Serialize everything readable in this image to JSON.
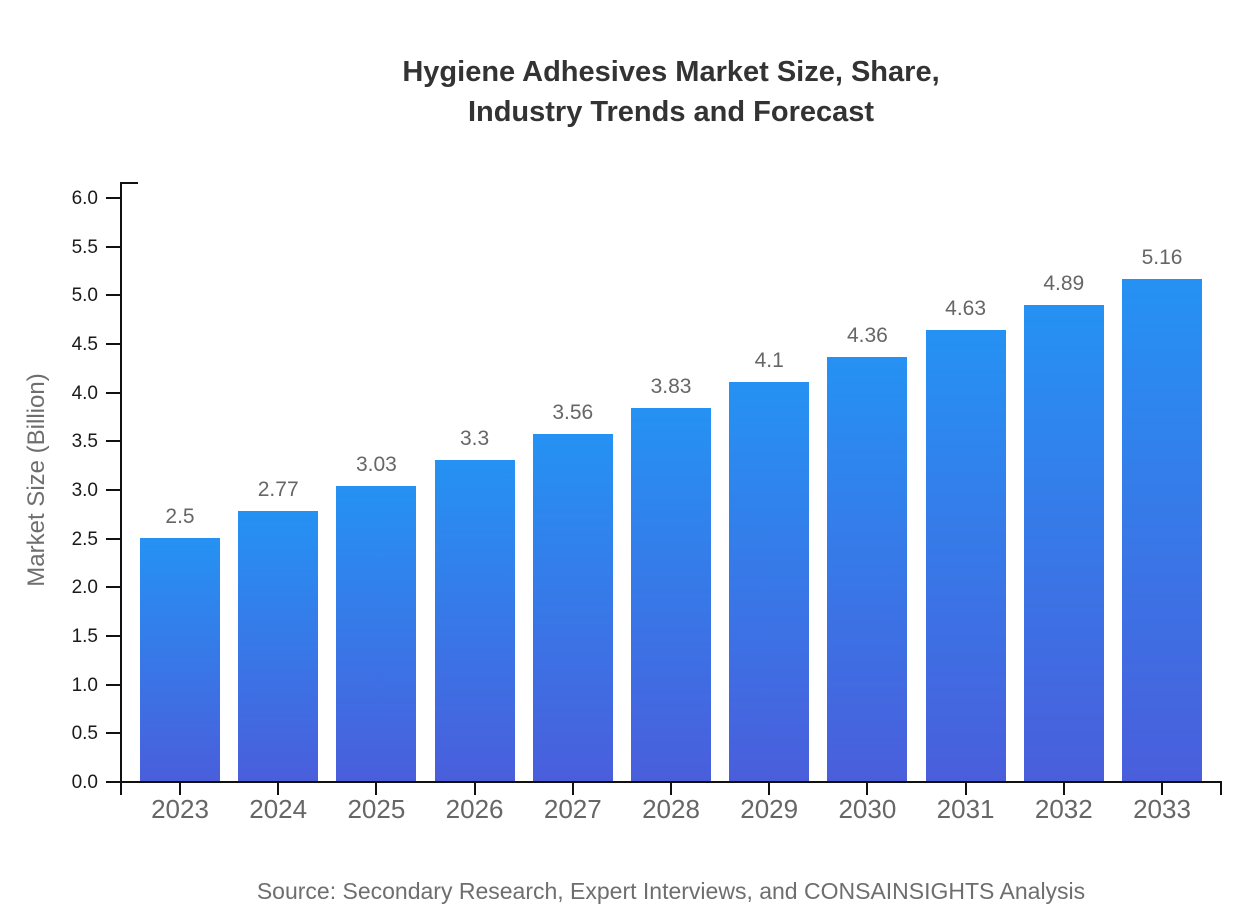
{
  "title": {
    "line1": "Hygiene Adhesives Market Size, Share,",
    "line2": "Industry Trends and Forecast"
  },
  "source": "Source: Secondary Research, Expert Interviews, and CONSAINSIGHTS Analysis",
  "colors": {
    "bar_gradient_top": "#2592f3",
    "bar_gradient_bottom": "#4a5edc",
    "axis": "#111111",
    "title_text": "#333333",
    "axis_label_text": "#6e6e6e",
    "x_tick_text": "#666666",
    "y_tick_text": "#1a1a1a",
    "value_label_text": "#666666",
    "background": "#ffffff"
  },
  "chart_data": {
    "type": "bar",
    "title": "Hygiene Adhesives Market Size, Share, Industry Trends and Forecast",
    "categories": [
      "2023",
      "2024",
      "2025",
      "2026",
      "2027",
      "2028",
      "2029",
      "2030",
      "2031",
      "2032",
      "2033"
    ],
    "values": [
      2.5,
      2.77,
      3.03,
      3.3,
      3.56,
      3.83,
      4.1,
      4.36,
      4.63,
      4.89,
      5.16
    ],
    "value_labels": [
      "2.5",
      "2.77",
      "3.03",
      "3.3",
      "3.56",
      "3.83",
      "4.1",
      "4.36",
      "4.63",
      "4.89",
      "5.16"
    ],
    "xlabel": "",
    "ylabel": "Market Size (Billion)",
    "ylim": [
      0.0,
      6.0
    ],
    "ytick_step": 0.5,
    "ytick_labels": [
      "0.0",
      "0.5",
      "1.0",
      "1.5",
      "2.0",
      "2.5",
      "3.0",
      "3.5",
      "4.0",
      "4.5",
      "5.0",
      "5.5",
      "6.0"
    ],
    "grid": false,
    "legend": null,
    "bar_color_gradient": [
      "#2592f3",
      "#4a5edc"
    ]
  }
}
